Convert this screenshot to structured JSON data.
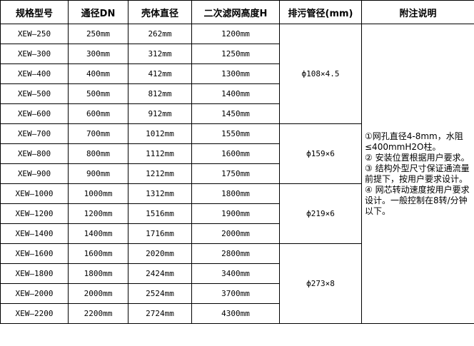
{
  "headers": [
    "规格型号",
    "通径DN",
    "壳体直径",
    "二次滤网高度H",
    "排污管径(mm)",
    "附注说明"
  ],
  "rows": [
    [
      "XEW—250",
      "250mm",
      "262mm",
      "1200mm"
    ],
    [
      "XEW—300",
      "300mm",
      "312mm",
      "1250mm"
    ],
    [
      "XEW—400",
      "400mm",
      "412mm",
      "1300mm"
    ],
    [
      "XEW—500",
      "500mm",
      "812mm",
      "1400mm"
    ],
    [
      "XEW—600",
      "600mm",
      "912mm",
      "1450mm"
    ],
    [
      "XEW—700",
      "700mm",
      "1012mm",
      "1550mm"
    ],
    [
      "XEW—800",
      "800mm",
      "1112mm",
      "1600mm"
    ],
    [
      "XEW—900",
      "900mm",
      "1212mm",
      "1750mm"
    ],
    [
      "XEW—1000",
      "1000mm",
      "1312mm",
      "1800mm"
    ],
    [
      "XEW—1200",
      "1200mm",
      "1516mm",
      "1900mm"
    ],
    [
      "XEW—1400",
      "1400mm",
      "1716mm",
      "2000mm"
    ],
    [
      "XEW—1600",
      "1600mm",
      "2020mm",
      "2800mm"
    ],
    [
      "XEW—1800",
      "1800mm",
      "2424mm",
      "3400mm"
    ],
    [
      "XEW—2000",
      "2000mm",
      "2524mm",
      "3700mm"
    ],
    [
      "XEW—2200",
      "2200mm",
      "2724mm",
      "4300mm"
    ]
  ],
  "drain_groups": [
    {
      "value": "ф108×4.5",
      "span": 5
    },
    {
      "value": "ф159×6",
      "span": 3
    },
    {
      "value": "ф219×6",
      "span": 3
    },
    {
      "value": "ф273×8",
      "span": 4
    }
  ],
  "notes": [
    "①网孔直径4-8mm，水阻≤400mmH2O柱。",
    "② 安装位置根据用户要求。",
    "③ 结构外型尺寸保证通流量前提下，按用户要求设计。",
    "④ 网芯转动速度按用户要求设计。一般控制在8转/分钟以下。"
  ]
}
